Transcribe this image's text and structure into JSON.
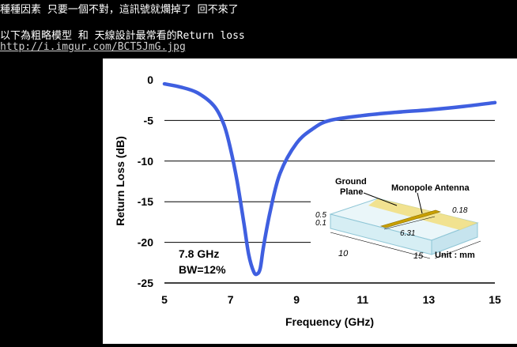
{
  "post": {
    "line1": "種種因素 只要一個不對，這訊號就爛掉了  回不來了",
    "line2": "以下為粗略模型 和 天線設計最常看的Return loss",
    "link": "http://i.imgur.com/BCT5JmG.jpg"
  },
  "chart_data": {
    "type": "line",
    "xlabel": "Frequency (GHz)",
    "ylabel": "Return Loss (dB)",
    "xlim": [
      5,
      15
    ],
    "ylim": [
      -25,
      0
    ],
    "x_ticks": [
      5,
      7,
      9,
      11,
      13,
      15
    ],
    "y_ticks": [
      0,
      -5,
      -10,
      -15,
      -20,
      -25
    ],
    "grid": "horizontal",
    "series": [
      {
        "color": "#3f5fe0",
        "x": [
          5,
          5.5,
          6,
          6.5,
          6.8,
          7,
          7.2,
          7.4,
          7.55,
          7.7,
          7.8,
          7.9,
          8.0,
          8.2,
          8.5,
          9,
          9.5,
          10,
          11,
          12,
          13,
          14,
          15
        ],
        "y": [
          -0.5,
          -0.9,
          -1.6,
          -3.2,
          -5.5,
          -8.5,
          -12.5,
          -17.5,
          -21.5,
          -23.6,
          -23.9,
          -23.2,
          -20.5,
          -16.2,
          -11.5,
          -7.8,
          -6.0,
          -5.0,
          -4.4,
          -4.0,
          -3.7,
          -3.3,
          -2.8
        ]
      }
    ],
    "annotations": {
      "freq": "7.8 GHz",
      "bw": "BW=12%",
      "inset": {
        "ground_plane_1": "Ground",
        "ground_plane_2": "Plane",
        "monopole": "Monopole Antenna",
        "dim_05": "0.5",
        "dim_01": "0.1",
        "dim_018": "0.18",
        "dim_631": "6.31",
        "dim_10": "10",
        "dim_15": "15",
        "unit": "Unit : mm"
      }
    }
  }
}
